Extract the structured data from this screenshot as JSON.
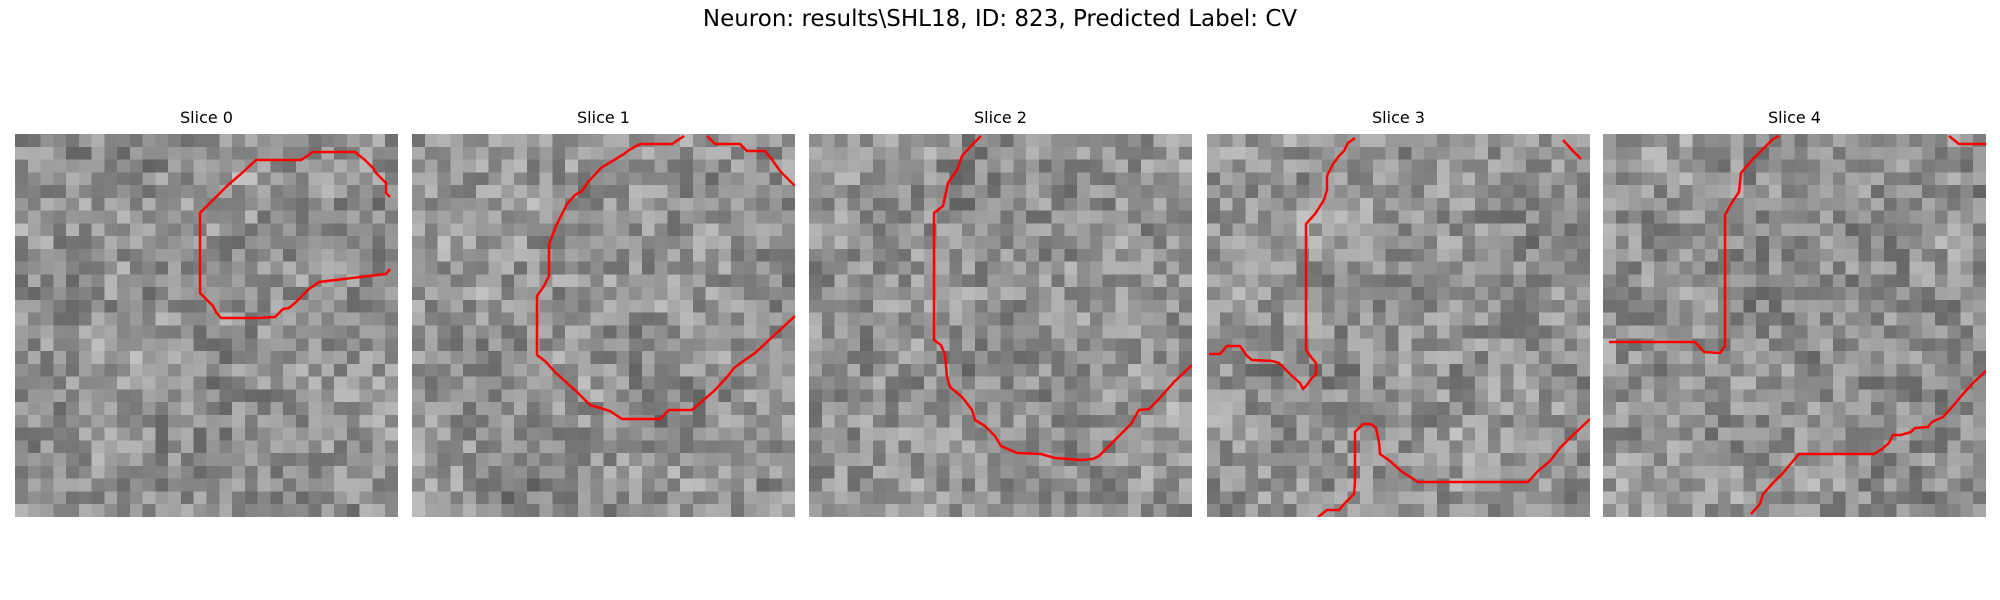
{
  "figure_title": "Neuron: results\\SHL18, ID: 823, Predicted Label: CV",
  "overlay_color": "#ff0000",
  "panels": [
    {
      "title": "Slice 0"
    },
    {
      "title": "Slice 1"
    },
    {
      "title": "Slice 2"
    },
    {
      "title": "Slice 3"
    },
    {
      "title": "Slice 4"
    }
  ]
}
